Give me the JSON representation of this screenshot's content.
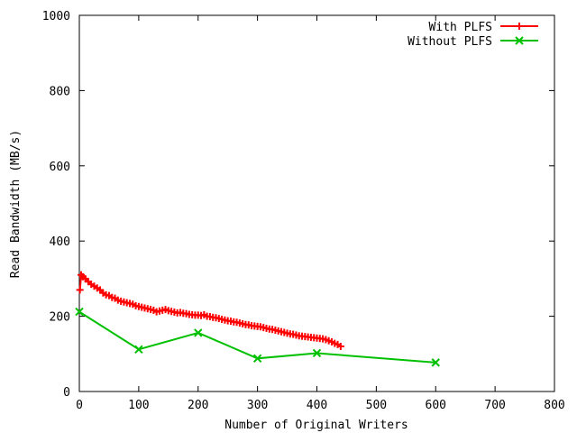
{
  "chart_data": {
    "type": "line",
    "title": "",
    "xlabel": "Number of Original Writers",
    "ylabel": "Read Bandwidth (MB/s)",
    "xlim": [
      0,
      800
    ],
    "ylim": [
      0,
      1000
    ],
    "x_ticks": [
      0,
      100,
      200,
      300,
      400,
      500,
      600,
      700,
      800
    ],
    "y_ticks": [
      0,
      200,
      400,
      600,
      800,
      1000
    ],
    "grid": false,
    "legend_position": "top-right",
    "series": [
      {
        "name": "With PLFS",
        "color": "#ff0000",
        "marker": "plus",
        "x": [
          1,
          3,
          6,
          10,
          15,
          20,
          25,
          30,
          35,
          40,
          45,
          50,
          55,
          60,
          65,
          70,
          75,
          80,
          85,
          90,
          95,
          100,
          105,
          110,
          115,
          120,
          125,
          130,
          135,
          140,
          145,
          150,
          155,
          160,
          165,
          170,
          175,
          180,
          185,
          190,
          195,
          200,
          205,
          210,
          215,
          220,
          225,
          230,
          235,
          240,
          245,
          250,
          255,
          260,
          265,
          270,
          275,
          280,
          285,
          290,
          295,
          300,
          305,
          310,
          315,
          320,
          325,
          330,
          335,
          340,
          345,
          350,
          355,
          360,
          365,
          370,
          375,
          380,
          385,
          390,
          395,
          400,
          405,
          410,
          415,
          420,
          425,
          430,
          435,
          440
        ],
        "y": [
          270,
          310,
          305,
          300,
          292,
          285,
          280,
          275,
          270,
          262,
          257,
          255,
          250,
          248,
          243,
          240,
          238,
          236,
          234,
          232,
          228,
          226,
          224,
          222,
          220,
          218,
          216,
          212,
          214,
          216,
          218,
          215,
          213,
          211,
          209,
          210,
          208,
          207,
          205,
          204,
          203,
          203,
          202,
          204,
          200,
          199,
          197,
          196,
          194,
          192,
          190,
          188,
          187,
          185,
          184,
          182,
          180,
          178,
          177,
          175,
          174,
          173,
          172,
          170,
          168,
          166,
          165,
          163,
          161,
          159,
          157,
          155,
          153,
          152,
          150,
          148,
          147,
          146,
          145,
          144,
          143,
          142,
          141,
          140,
          138,
          135,
          132,
          128,
          125,
          120
        ]
      },
      {
        "name": "Without PLFS",
        "color": "#00c000",
        "marker": "cross",
        "x": [
          0,
          100,
          200,
          300,
          400,
          600
        ],
        "y": [
          212,
          112,
          156,
          88,
          102,
          77
        ]
      }
    ]
  }
}
